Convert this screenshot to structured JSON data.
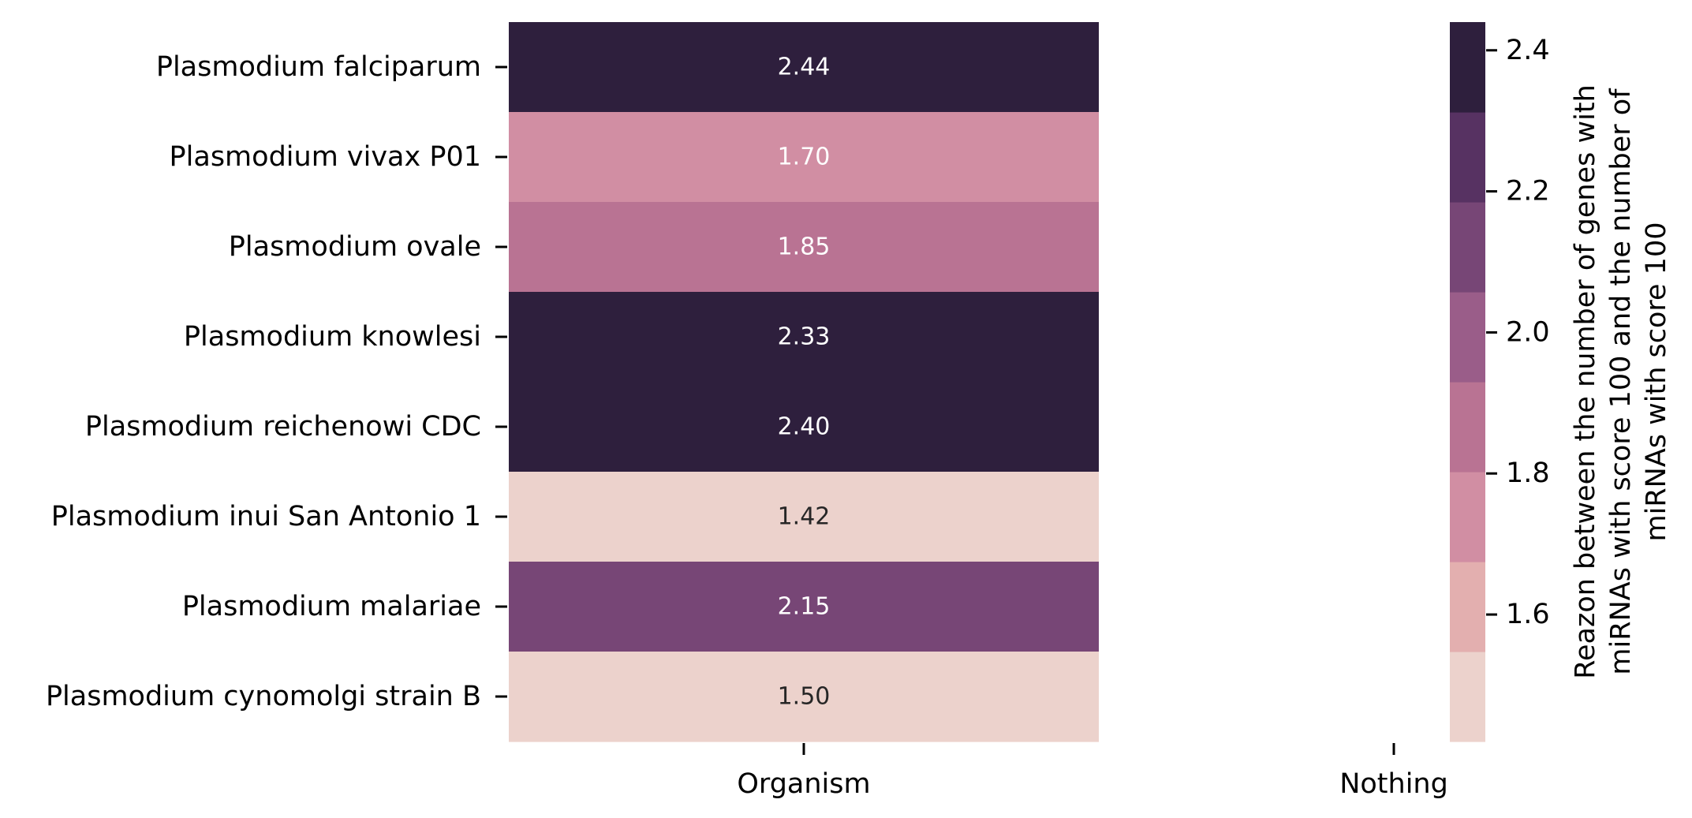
{
  "chart_data": {
    "type": "heatmap",
    "title": "",
    "columns": [
      "Organism",
      "Nothing"
    ],
    "rows": [
      "Plasmodium falciparum",
      "Plasmodium vivax P01",
      "Plasmodium ovale",
      "Plasmodium knowlesi",
      "Plasmodium reichenowi CDC",
      "Plasmodium inui San Antonio 1",
      "Plasmodium malariae",
      "Plasmodium cynomolgi strain B"
    ],
    "values": [
      2.44,
      1.7,
      1.85,
      2.33,
      2.4,
      1.42,
      2.15,
      1.5
    ],
    "value_labels": [
      "2.44",
      "1.70",
      "1.85",
      "2.33",
      "2.40",
      "1.42",
      "2.15",
      "1.50"
    ],
    "colorbar": {
      "label_lines": [
        "Reazon between the number of genes with",
        "miRNAs with score 100 and the number of",
        "miRNAs with score 100"
      ],
      "range": [
        1.42,
        2.44
      ],
      "ticks": [
        1.6,
        1.8,
        2.0,
        2.2,
        2.4
      ],
      "tick_labels": [
        "1.6",
        "1.8",
        "2.0",
        "2.2",
        "2.4"
      ],
      "colors": [
        "#ecd2cc",
        "#e3afaf",
        "#d18ea3",
        "#b97393",
        "#9a5d89",
        "#774676",
        "#573262",
        "#2e1f3d"
      ]
    }
  }
}
